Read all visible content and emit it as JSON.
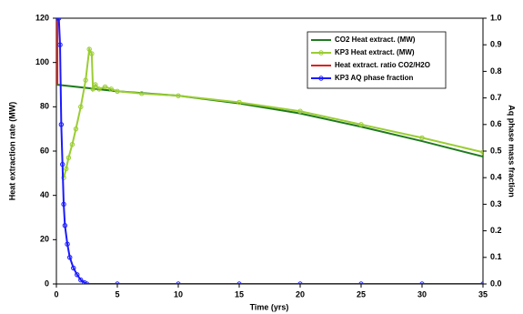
{
  "chart_data": {
    "type": "line",
    "xlabel": "Time (yrs)",
    "ylabel": "Heat extraction rate (MW)",
    "y2label": "Aq phase mass fraction",
    "xlim": [
      0,
      35
    ],
    "xticks": [
      0,
      5,
      10,
      15,
      20,
      25,
      30,
      35
    ],
    "ylim": [
      0,
      120
    ],
    "yticks": [
      0,
      20,
      40,
      60,
      80,
      100,
      120
    ],
    "y2lim": [
      0,
      1
    ],
    "y2ticks": [
      {
        "value": 0,
        "label": "0.0"
      },
      0.1,
      0.2,
      0.3,
      0.4,
      0.5,
      0.6,
      0.7,
      0.8,
      0.9,
      {
        "value": 1,
        "label": "1.0"
      }
    ],
    "legend": "upper right",
    "series": [
      {
        "name": "CO2 Heat extract. (MW)",
        "color": "#1f7a1f",
        "markers": false,
        "x": [
          0,
          5,
          10,
          15,
          20,
          25,
          30,
          35
        ],
        "values": [
          90,
          87,
          85,
          81.5,
          77,
          71,
          64.5,
          57.5
        ]
      },
      {
        "name": "KP3 Heat extract. (MW)",
        "color": "#9acd32",
        "markers": true,
        "x": [
          0.6,
          0.8,
          1.0,
          1.3,
          1.6,
          2.0,
          2.4,
          2.7,
          2.9,
          3.0,
          3.2,
          3.5,
          4.0,
          4.5,
          5,
          7,
          10,
          15,
          20,
          25,
          30,
          35
        ],
        "values": [
          48,
          52,
          57,
          63,
          70,
          80,
          92,
          106,
          104,
          88,
          90,
          88,
          89,
          88,
          87,
          86,
          85,
          82,
          78,
          72,
          66,
          59.5
        ]
      },
      {
        "name": "Heat extract. ratio CO2/H2O",
        "color": "#e02020",
        "markers": false,
        "x": [
          0.08,
          0.08
        ],
        "values": [
          120,
          90
        ]
      },
      {
        "name": "KP3 AQ phase fraction",
        "color": "#1a1aff",
        "markers": true,
        "axis": "y2",
        "x": [
          0,
          0.2,
          0.3,
          0.4,
          0.5,
          0.6,
          0.7,
          0.9,
          1.1,
          1.4,
          1.7,
          2.0,
          2.3,
          2.5,
          5,
          10,
          15,
          20,
          25,
          30,
          35
        ],
        "values": [
          1,
          1,
          0.9,
          0.6,
          0.45,
          0.3,
          0.22,
          0.15,
          0.1,
          0.06,
          0.035,
          0.015,
          0.005,
          0,
          0,
          0,
          0,
          0,
          0,
          0,
          0
        ]
      }
    ]
  }
}
